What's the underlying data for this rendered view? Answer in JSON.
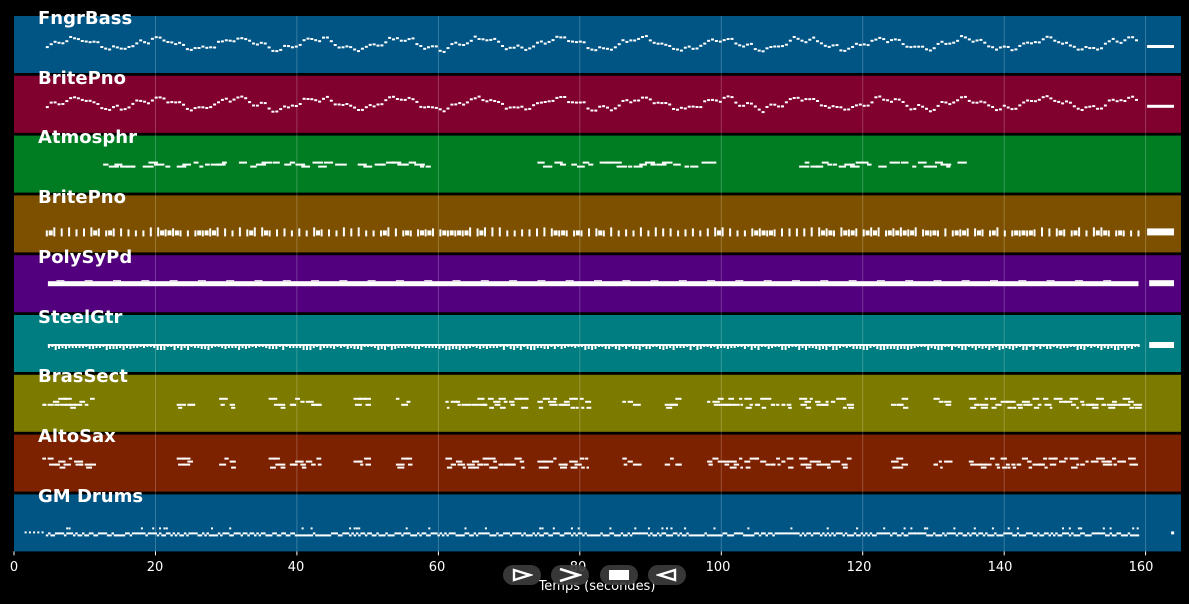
{
  "x_axis": {
    "label": "Temps (secondes)",
    "ticks": [
      "0",
      "20",
      "40",
      "60",
      "80",
      "100",
      "120",
      "140",
      "160"
    ],
    "range": [
      0,
      165
    ]
  },
  "tracks": [
    {
      "name": "FngrBass",
      "color": "#005585",
      "pattern": "wave"
    },
    {
      "name": "BritePno",
      "color": "#80002e",
      "pattern": "wave"
    },
    {
      "name": "Atmosphr",
      "color": "#007d22",
      "pattern": "sparse"
    },
    {
      "name": "BritePno",
      "color": "#7d5000",
      "pattern": "comb"
    },
    {
      "name": "PolySyPd",
      "color": "#52007d",
      "pattern": "solid"
    },
    {
      "name": "SteelGtr",
      "color": "#007d80",
      "pattern": "dense"
    },
    {
      "name": "BrasSect",
      "color": "#7d7a00",
      "pattern": "phrases"
    },
    {
      "name": "AltoSax",
      "color": "#7d2200",
      "pattern": "phrases"
    },
    {
      "name": "GM Drums",
      "color": "#005585",
      "pattern": "drums"
    }
  ],
  "controls": [
    {
      "name": "play-outline-icon"
    },
    {
      "name": "fast-forward-icon"
    },
    {
      "name": "stop-icon"
    },
    {
      "name": "rewind-icon"
    }
  ]
}
